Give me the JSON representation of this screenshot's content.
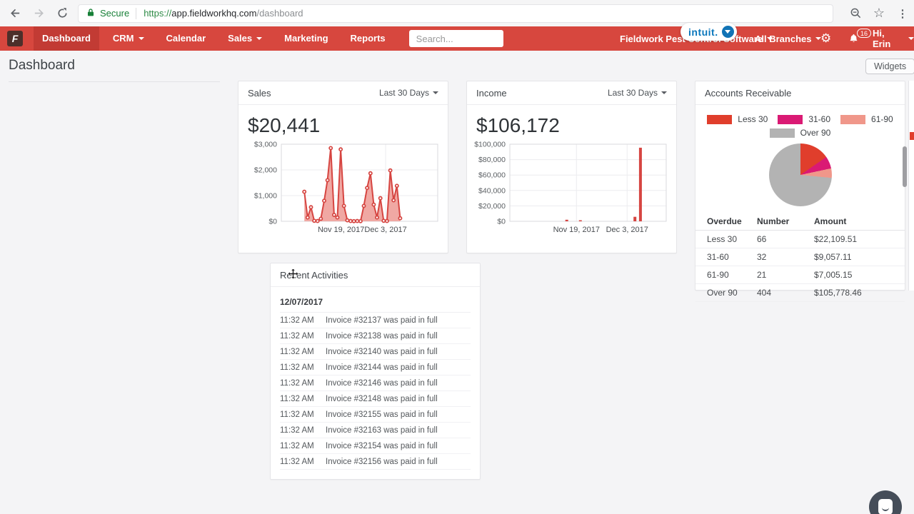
{
  "browser": {
    "secure_label": "Secure",
    "url_scheme": "https://",
    "url_host": "app.fieldworkhq.com",
    "url_path": "/dashboard"
  },
  "nav": {
    "brand_letter": "F",
    "items": [
      {
        "label": "Dashboard",
        "active": true,
        "caret": false
      },
      {
        "label": "CRM",
        "active": false,
        "caret": true
      },
      {
        "label": "Calendar",
        "active": false,
        "caret": false
      },
      {
        "label": "Sales",
        "active": false,
        "caret": true
      },
      {
        "label": "Marketing",
        "active": false,
        "caret": false
      },
      {
        "label": "Reports",
        "active": false,
        "caret": false
      }
    ],
    "search_placeholder": "Search...",
    "company_name": "Fieldwork Pest Control Software",
    "intuit_label": "intuit.",
    "branches_label": "All Branches",
    "notification_count": "16",
    "user_greeting": "Hi, Erin"
  },
  "page": {
    "title": "Dashboard",
    "widgets_button_label": "Widgets"
  },
  "colors": {
    "nav_red": "#d7473e",
    "nav_active_red": "#c23b34",
    "chart_red": "#d64541",
    "chart_fill": "#f0a8a3",
    "pie_less30": "#e03e2c",
    "pie_31_60": "#da1a74",
    "pie_61_90": "#f0978a",
    "pie_over90": "#b3b3b3"
  },
  "icons": {
    "lock": "padlock",
    "star": "☆",
    "menu_dots": "⋮",
    "gear": "⚙"
  },
  "chart_data": [
    {
      "id": "sales",
      "type": "line",
      "title": "Sales",
      "range_label": "Last 30 Days",
      "total_label": "$20,441",
      "values": [
        1150,
        150,
        550,
        20,
        10,
        100,
        800,
        1600,
        2850,
        250,
        150,
        2800,
        600,
        40,
        10,
        5,
        10,
        5,
        600,
        1300,
        1870,
        650,
        150,
        900,
        20,
        10,
        1980,
        820,
        1380,
        120
      ],
      "ylim": [
        0,
        3000
      ],
      "yticks": [
        {
          "v": 0,
          "label": "$0"
        },
        {
          "v": 1000,
          "label": "$1,000"
        },
        {
          "v": 2000,
          "label": "$2,000"
        },
        {
          "v": 3000,
          "label": "$3,000"
        }
      ],
      "xticks": [
        {
          "pos": 0.382,
          "label": "Nov 19, 2017"
        },
        {
          "pos": 0.667,
          "label": "Dec 3, 2017"
        }
      ],
      "x_start_frac": 0.147,
      "x_end_frac": 0.76,
      "color": "#d64541",
      "fill_color": "#f0a8a3",
      "grid": true
    },
    {
      "id": "income",
      "type": "bar",
      "title": "Income",
      "range_label": "Last 30 Days",
      "total_label": "$106,172",
      "bars": [
        {
          "pos": 0.364,
          "value": 2000
        },
        {
          "pos": 0.451,
          "value": 1400
        },
        {
          "pos": 0.8,
          "value": 5800
        },
        {
          "pos": 0.835,
          "value": 95500
        }
      ],
      "ylim": [
        0,
        100000
      ],
      "yticks": [
        {
          "v": 0,
          "label": "$0"
        },
        {
          "v": 20000,
          "label": "$20,000"
        },
        {
          "v": 40000,
          "label": "$40,000"
        },
        {
          "v": 60000,
          "label": "$60,000"
        },
        {
          "v": 80000,
          "label": "$80,000"
        },
        {
          "v": 100000,
          "label": "$100,000"
        }
      ],
      "xticks": [
        {
          "pos": 0.426,
          "label": "Nov 19, 2017"
        },
        {
          "pos": 0.75,
          "label": "Dec 3, 2017"
        }
      ],
      "color": "#d64541",
      "grid": true
    },
    {
      "id": "receivables",
      "type": "pie",
      "title": "Accounts Receivable",
      "legend_position": "top",
      "slices": [
        {
          "label": "Less 30",
          "value": 22109.51,
          "color": "#e03e2c"
        },
        {
          "label": "31-60",
          "value": 9057.11,
          "color": "#da1a74"
        },
        {
          "label": "61-90",
          "value": 7005.15,
          "color": "#f0978a"
        },
        {
          "label": "Over 90",
          "value": 105778.46,
          "color": "#b3b3b3"
        }
      ]
    }
  ],
  "receivables_table": {
    "headers": [
      "Overdue",
      "Number",
      "Amount"
    ],
    "rows": [
      {
        "overdue": "Less 30",
        "number": "66",
        "amount": "$22,109.51"
      },
      {
        "overdue": "31-60",
        "number": "32",
        "amount": "$9,057.11"
      },
      {
        "overdue": "61-90",
        "number": "21",
        "amount": "$7,005.15"
      },
      {
        "overdue": "Over 90",
        "number": "404",
        "amount": "$105,778.46"
      }
    ]
  },
  "activities": {
    "title": "Recent Activities",
    "date": "12/07/2017",
    "items": [
      {
        "time": "11:32 AM",
        "text": "Invoice #32137 was paid in full"
      },
      {
        "time": "11:32 AM",
        "text": "Invoice #32138 was paid in full"
      },
      {
        "time": "11:32 AM",
        "text": "Invoice #32140 was paid in full"
      },
      {
        "time": "11:32 AM",
        "text": "Invoice #32144 was paid in full"
      },
      {
        "time": "11:32 AM",
        "text": "Invoice #32146 was paid in full"
      },
      {
        "time": "11:32 AM",
        "text": "Invoice #32148 was paid in full"
      },
      {
        "time": "11:32 AM",
        "text": "Invoice #32155 was paid in full"
      },
      {
        "time": "11:32 AM",
        "text": "Invoice #32163 was paid in full"
      },
      {
        "time": "11:32 AM",
        "text": "Invoice #32154 was paid in full"
      },
      {
        "time": "11:32 AM",
        "text": "Invoice #32156 was paid in full"
      }
    ]
  }
}
